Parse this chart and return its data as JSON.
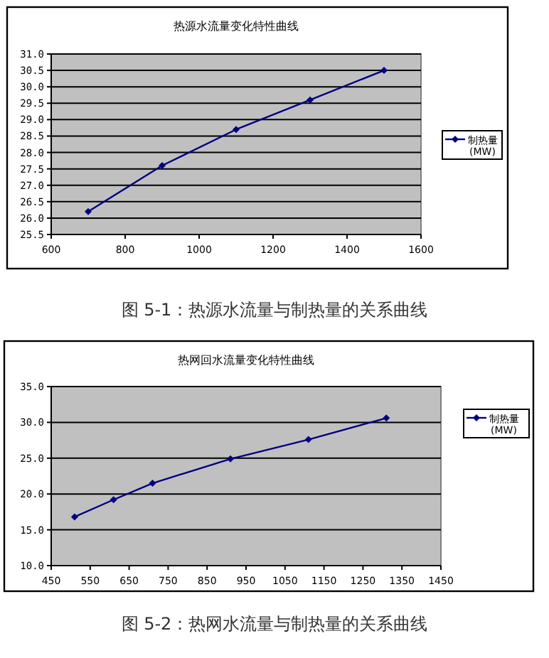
{
  "chart_data": [
    {
      "type": "line",
      "title": "热源水流量变化特性曲线",
      "annotations": [
        "图 5-1：热源水流量与制热量的关系曲线"
      ],
      "x": [
        700,
        900,
        1100,
        1300,
        1500
      ],
      "xlim": [
        600,
        1600
      ],
      "xticks": [
        600,
        800,
        1000,
        1200,
        1400,
        1600
      ],
      "ylim": [
        25.5,
        31
      ],
      "yticks": [
        {
          "value": 25.5,
          "label": "25.5"
        },
        {
          "value": 26,
          "label": "26.0"
        },
        {
          "value": 26.5,
          "label": "26.5"
        },
        {
          "value": 27,
          "label": "27.0"
        },
        {
          "value": 27.5,
          "label": "27.5"
        },
        {
          "value": 28,
          "label": "28.0"
        },
        {
          "value": 28.5,
          "label": "28.5"
        },
        {
          "value": 29,
          "label": "29.0"
        },
        {
          "value": 29.5,
          "label": "29.5"
        },
        {
          "value": 30,
          "label": "30.0"
        },
        {
          "value": 30.5,
          "label": "30.5"
        },
        {
          "value": 31,
          "label": "31.0"
        }
      ],
      "grid": "y",
      "legend": "right",
      "marker": "diamond",
      "line_style": "solid",
      "series": [
        {
          "name": "制热量 (MW)",
          "color": "#000080",
          "values": [
            26.2,
            27.6,
            28.7,
            29.6,
            30.5
          ]
        }
      ]
    },
    {
      "type": "line",
      "title": "热网回水流量变化特性曲线",
      "annotations": [
        "图 5-2：热网水流量与制热量的关系曲线"
      ],
      "x": [
        510,
        610,
        710,
        910,
        1110,
        1310
      ],
      "xlim": [
        450,
        1450
      ],
      "xticks": [
        450,
        550,
        650,
        750,
        850,
        950,
        1050,
        1150,
        1250,
        1350,
        1450
      ],
      "ylim": [
        10,
        35
      ],
      "yticks": [
        {
          "value": 10,
          "label": "10.0"
        },
        {
          "value": 15,
          "label": "15.0"
        },
        {
          "value": 20,
          "label": "20.0"
        },
        {
          "value": 25,
          "label": "25.0"
        },
        {
          "value": 30,
          "label": "30.0"
        },
        {
          "value": 35,
          "label": "35.0"
        }
      ],
      "grid": "y",
      "legend": "right",
      "marker": "diamond",
      "line_style": "solid",
      "series": [
        {
          "name": "制热量 (MW)",
          "color": "#000080",
          "values": [
            16.8,
            19.2,
            21.5,
            24.9,
            27.6,
            30.6
          ]
        }
      ]
    }
  ]
}
